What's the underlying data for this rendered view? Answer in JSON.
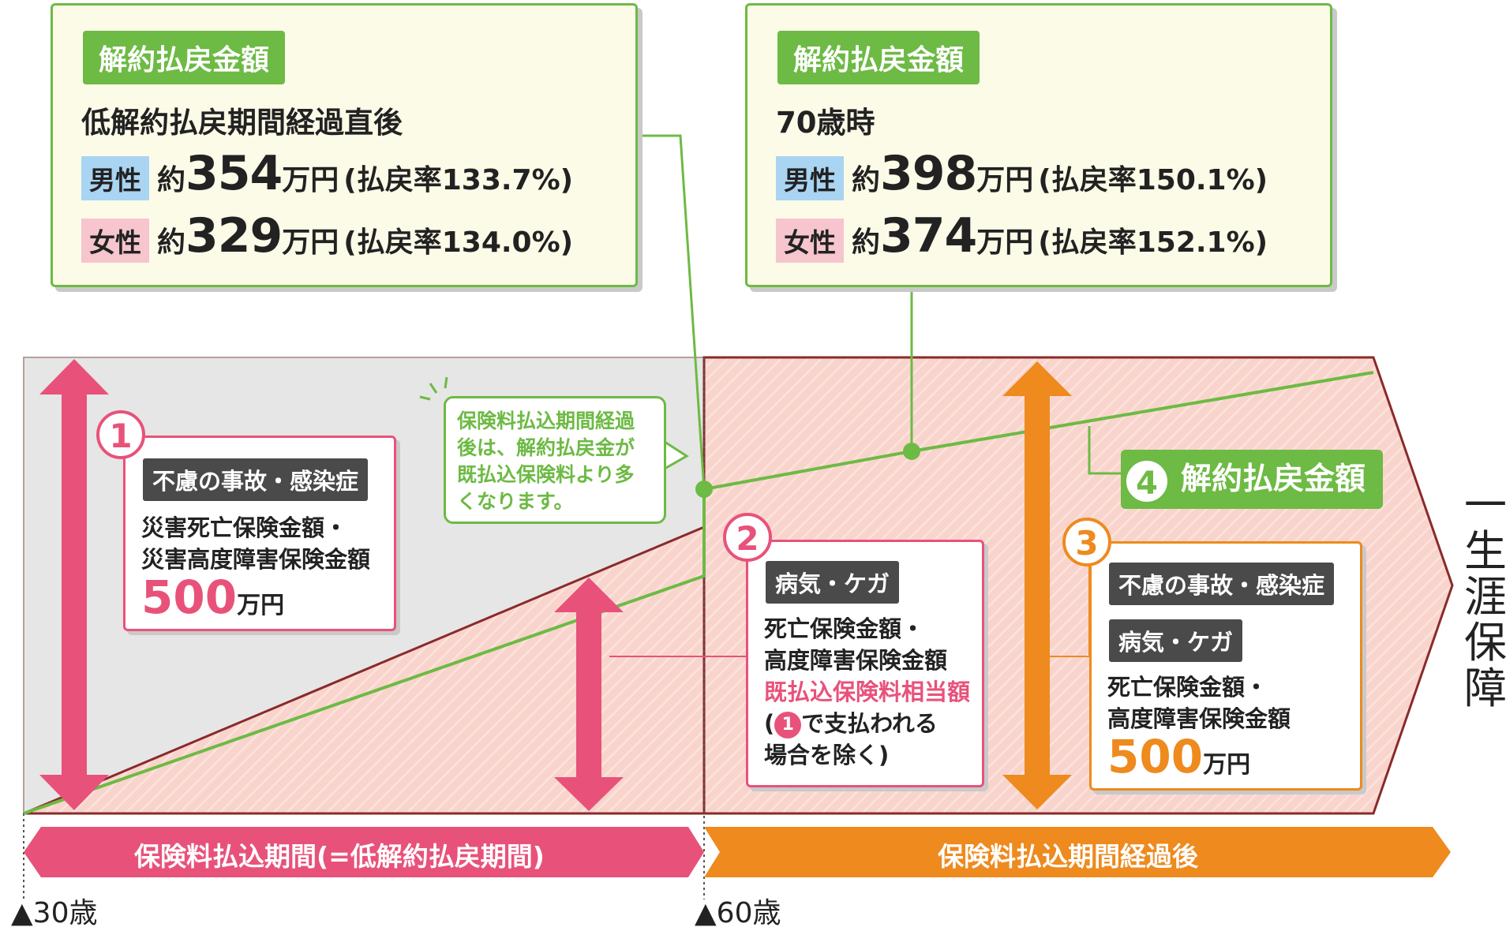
{
  "callout_left": {
    "tag": "解約払戻金額",
    "subtitle": "低解約払戻期間経過直後",
    "male_label": "男性",
    "male_prefix": "約",
    "male_amount": "354",
    "male_unit": "万円",
    "male_rate": "(払戻率133.7%)",
    "female_label": "女性",
    "female_prefix": "約",
    "female_amount": "329",
    "female_unit": "万円",
    "female_rate": "(払戻率134.0%)"
  },
  "callout_right": {
    "tag": "解約払戻金額",
    "subtitle": "70歳時",
    "male_label": "男性",
    "male_prefix": "約",
    "male_amount": "398",
    "male_unit": "万円",
    "male_rate": "(払戻率150.1%)",
    "female_label": "女性",
    "female_prefix": "約",
    "female_amount": "374",
    "female_unit": "万円",
    "female_rate": "(払戻率152.1%)"
  },
  "card1": {
    "number": "1",
    "tag": "不慮の事故・感染症",
    "line1": "災害死亡保険金額・",
    "line2": "災害高度障害保険金額",
    "amount": "500",
    "unit": "万円"
  },
  "card2": {
    "number": "2",
    "tag": "病気・ケガ",
    "line1": "死亡保険金額・",
    "line2": "高度障害保険金額",
    "line3": "既払込保険料相当額",
    "line4_open": "(",
    "line4_ref": "1",
    "line4_rest": "で支払われる",
    "line5": "場合を除く)"
  },
  "card3": {
    "number": "3",
    "tag1": "不慮の事故・感染症",
    "tag2": "病気・ケガ",
    "line1": "死亡保険金額・",
    "line2": "高度障害保険金額",
    "amount": "500",
    "unit": "万円"
  },
  "note": {
    "line1": "保険料払込期間経過",
    "line2": "後は、解約払戻金が",
    "line3": "既払込保険料より多",
    "line4": "くなります。"
  },
  "label4": {
    "number": "4",
    "text": "解約払戻金額"
  },
  "bands": {
    "left": "保険料払込期間(=低解約払戻期間)",
    "right": "保険料払込期間経過後"
  },
  "ages": {
    "start": "▲30歳",
    "mid": "▲60歳"
  },
  "lifetime": [
    "一",
    "生",
    "涯",
    "保",
    "障"
  ],
  "colors": {
    "pink": "#e8527a",
    "orange": "#ee8a1e",
    "green": "#6dba44",
    "gray_area": "#e6e6e6",
    "pink_area": "#f9d4cc"
  }
}
